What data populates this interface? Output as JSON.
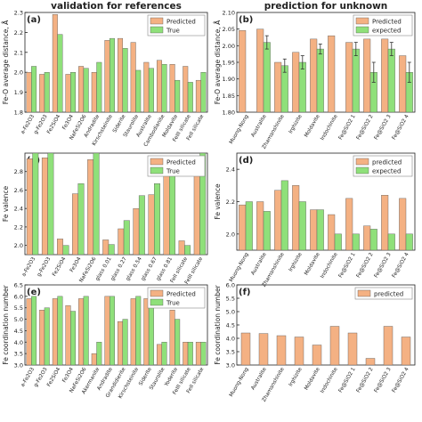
{
  "colors": {
    "predicted": "#f4b183",
    "true": "#8fe07a",
    "expected": "#8fe07a",
    "edge": "#555555",
    "axis": "#222222",
    "text": "#222222"
  },
  "chart_data": [
    {
      "panel": "(a)",
      "title": "validation for references",
      "type": "bar",
      "ylabel": "Fe-O average distance, Å",
      "ylim": [
        1.8,
        2.3
      ],
      "yticks": [
        1.8,
        1.9,
        2.0,
        2.1,
        2.2,
        2.3
      ],
      "ytick_labels": [
        "1.8",
        "1.9",
        "2.0",
        "2.1",
        "2.2",
        "2.3"
      ],
      "legend": {
        "position": "top-right",
        "entries": [
          "Predicted",
          "True"
        ]
      },
      "categories": [
        "a-Fe2O3",
        "g-Fe2O3",
        "Fe2SiO4",
        "Fe3O4",
        "NaFeSi2O6",
        "Andradite",
        "Kirschsteinite",
        "Siderite",
        "Staurolite",
        "Australite",
        "Cambodianite",
        "Moldavite",
        "FeIII silicate",
        "FeII silicate"
      ],
      "series": [
        {
          "name": "Predicted",
          "color_key": "predicted",
          "values": [
            2.0,
            1.99,
            2.29,
            1.99,
            2.03,
            2.0,
            2.16,
            2.17,
            2.15,
            2.05,
            2.06,
            2.04,
            2.03,
            1.96
          ]
        },
        {
          "name": "True",
          "color_key": "true",
          "values": [
            2.03,
            2.0,
            2.19,
            2.0,
            2.02,
            2.05,
            2.17,
            2.12,
            2.01,
            2.02,
            2.04,
            1.96,
            1.95,
            2.0
          ]
        }
      ]
    },
    {
      "panel": "(b)",
      "title": "prediction for unknown",
      "type": "bar",
      "ylabel": "Fe-O average distance, Å",
      "ylim": [
        1.8,
        2.1
      ],
      "yticks": [
        1.8,
        1.85,
        1.9,
        1.95,
        2.0,
        2.05,
        2.1
      ],
      "ytick_labels": [
        "1.80",
        "1.85",
        "1.90",
        "1.95",
        "2.00",
        "2.05",
        "2.10"
      ],
      "legend": {
        "position": "top-right",
        "entries": [
          "Predicted",
          "expected"
        ]
      },
      "categories": [
        "Muong-Nong",
        "Australite",
        "Zhamanshinite",
        "Irghizite",
        "Moldavite",
        "Indochinite",
        "Fe@SiO2 1",
        "Fe@SiO2 2",
        "Fe@SiO2 3",
        "Fe@SiO2 4"
      ],
      "series": [
        {
          "name": "Predicted",
          "color_key": "predicted",
          "values": [
            2.046,
            2.05,
            1.95,
            1.98,
            2.02,
            2.03,
            2.01,
            2.02,
            2.02,
            1.97
          ]
        },
        {
          "name": "expected",
          "color_key": "expected",
          "values": [
            null,
            2.01,
            1.94,
            1.95,
            1.99,
            null,
            1.99,
            1.92,
            1.99,
            1.92
          ],
          "errors": [
            null,
            0.02,
            0.02,
            0.02,
            0.015,
            null,
            0.02,
            0.03,
            0.02,
            0.03
          ]
        }
      ]
    },
    {
      "panel": "(c)",
      "title": "",
      "type": "bar",
      "ylabel": "Fe valence",
      "ylim": [
        1.9,
        3.0
      ],
      "yticks": [
        2.0,
        2.2,
        2.4,
        2.6,
        2.8
      ],
      "ytick_labels": [
        "2.0",
        "2.2",
        "2.4",
        "2.6",
        "2.8"
      ],
      "legend": {
        "position": "top-right",
        "entries": [
          "Predicted",
          "True"
        ]
      },
      "categories": [
        "a-Fe2O3",
        "g-Fe2O3",
        "Fe2SiO4",
        "Fe3O4",
        "NaFeSi2O6",
        "glass 0.01",
        "glass 0.27",
        "glass 0.54",
        "glass 0.67",
        "glass 0.81",
        "FeII silicate",
        "FeIII silicate"
      ],
      "series": [
        {
          "name": "Predicted",
          "color_key": "predicted",
          "values": [
            2.94,
            2.95,
            2.07,
            2.56,
            2.93,
            2.06,
            2.18,
            2.4,
            2.55,
            2.8,
            2.05,
            2.95
          ]
        },
        {
          "name": "True",
          "color_key": "true",
          "values": [
            3.0,
            3.0,
            2.0,
            2.67,
            3.0,
            2.01,
            2.27,
            2.54,
            2.67,
            2.81,
            2.0,
            3.0
          ]
        }
      ]
    },
    {
      "panel": "(d)",
      "title": "",
      "type": "bar",
      "ylabel": "Fe valence",
      "ylim": [
        1.9,
        2.5
      ],
      "yticks": [
        2.0,
        2.2,
        2.4
      ],
      "ytick_labels": [
        "2.0",
        "2.2",
        "2.4"
      ],
      "legend": {
        "position": "top-right",
        "entries": [
          "predicted",
          "expected"
        ]
      },
      "categories": [
        "Muong-Nong",
        "Australite",
        "Zhamanshinite",
        "Irghizite",
        "Moldavite",
        "Indochinite",
        "Fe@SiO2 1",
        "Fe@SiO2 2",
        "Fe@SiO2 3",
        "Fe@SiO2 4"
      ],
      "series": [
        {
          "name": "predicted",
          "color_key": "predicted",
          "values": [
            2.18,
            2.2,
            2.27,
            2.3,
            2.15,
            2.12,
            2.22,
            2.05,
            2.24,
            2.22
          ]
        },
        {
          "name": "expected",
          "color_key": "expected",
          "values": [
            2.2,
            2.14,
            2.33,
            2.2,
            2.15,
            2.0,
            2.0,
            2.03,
            2.0,
            2.0
          ]
        }
      ]
    },
    {
      "panel": "(e)",
      "title": "",
      "type": "bar",
      "ylabel": "Fe coordination number",
      "ylim": [
        3.0,
        6.5
      ],
      "yticks": [
        3.0,
        3.5,
        4.0,
        4.5,
        5.0,
        5.5,
        6.0,
        6.5
      ],
      "ytick_labels": [
        "3.0",
        "3.5",
        "4.0",
        "4.5",
        "5.0",
        "5.5",
        "6.0",
        "6.5"
      ],
      "legend": {
        "position": "top-right",
        "entries": [
          "Predicted",
          "True"
        ]
      },
      "categories": [
        "a-Fe2O3",
        "g-Fe2O3",
        "Fe2SiO4",
        "Fe3O4",
        "NaFeSi2O6",
        "Akermanite",
        "Andradite",
        "Grandidierite",
        "Kirschsteinite",
        "Siderite",
        "Staurolite",
        "Yoderite",
        "FeIII silicate",
        "FeII silicate"
      ],
      "series": [
        {
          "name": "Predicted",
          "color_key": "predicted",
          "values": [
            5.9,
            5.4,
            5.9,
            5.6,
            5.9,
            3.5,
            6.0,
            4.9,
            5.9,
            5.9,
            3.9,
            5.4,
            4.0,
            4.0
          ]
        },
        {
          "name": "True",
          "color_key": "true",
          "values": [
            6.0,
            5.5,
            6.0,
            5.35,
            6.0,
            4.0,
            6.0,
            5.0,
            6.0,
            6.0,
            4.0,
            5.0,
            4.0,
            4.0
          ]
        }
      ]
    },
    {
      "panel": "(f)",
      "title": "",
      "type": "bar",
      "ylabel": "Fe coordination number",
      "ylim": [
        3.0,
        6.0
      ],
      "yticks": [
        3.0,
        3.5,
        4.0,
        4.5,
        5.0,
        5.5,
        6.0
      ],
      "ytick_labels": [
        "3.0",
        "3.5",
        "4.0",
        "4.5",
        "5.0",
        "5.5",
        "6.0"
      ],
      "legend": {
        "position": "top-right",
        "entries": [
          "predicted"
        ]
      },
      "categories": [
        "Muong-Nong",
        "Australite",
        "Zhamanshinite",
        "Irghizite",
        "Moldavite",
        "Indochinite",
        "Fe@SiO2 1",
        "Fe@SiO2 2",
        "Fe@SiO2 3",
        "Fe@SiO2 4"
      ],
      "series": [
        {
          "name": "predicted",
          "color_key": "predicted",
          "values": [
            4.2,
            4.18,
            4.1,
            4.05,
            3.75,
            4.45,
            4.2,
            3.25,
            4.45,
            4.05
          ]
        }
      ]
    }
  ]
}
